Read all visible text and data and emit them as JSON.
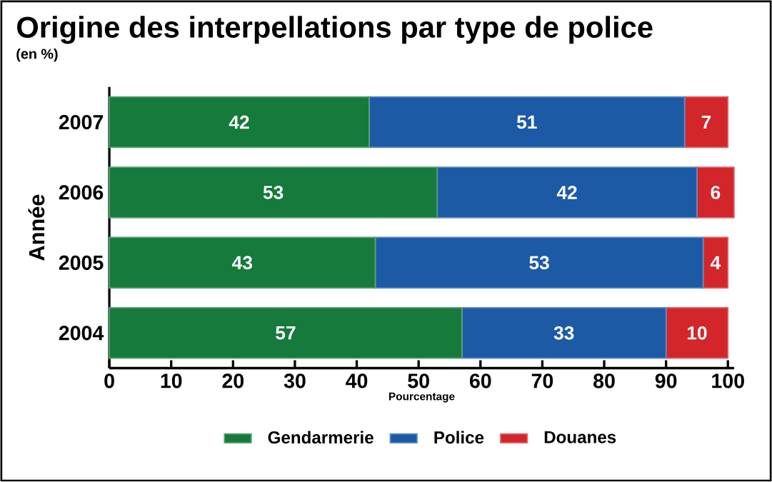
{
  "chart_data": {
    "type": "bar",
    "orientation": "horizontal",
    "stacked": true,
    "title": "Origine des interpellations par type de police",
    "subtitle": "(en %)",
    "xlabel": "Pourcentage",
    "ylabel": "Année",
    "categories": [
      "2007",
      "2006",
      "2005",
      "2004"
    ],
    "series": [
      {
        "name": "Gendarmerie",
        "color": "#157a3c",
        "values": [
          42,
          53,
          43,
          57
        ]
      },
      {
        "name": "Police",
        "color": "#1c5aa6",
        "values": [
          51,
          42,
          53,
          33
        ]
      },
      {
        "name": "Douanes",
        "color": "#d2262a",
        "values": [
          7,
          6,
          4,
          10
        ]
      }
    ],
    "xlim": [
      0,
      101
    ],
    "xticks": [
      0,
      10,
      20,
      30,
      40,
      50,
      60,
      70,
      80,
      90,
      100
    ],
    "data_labels": true,
    "legend": "bottom",
    "grid": false
  }
}
